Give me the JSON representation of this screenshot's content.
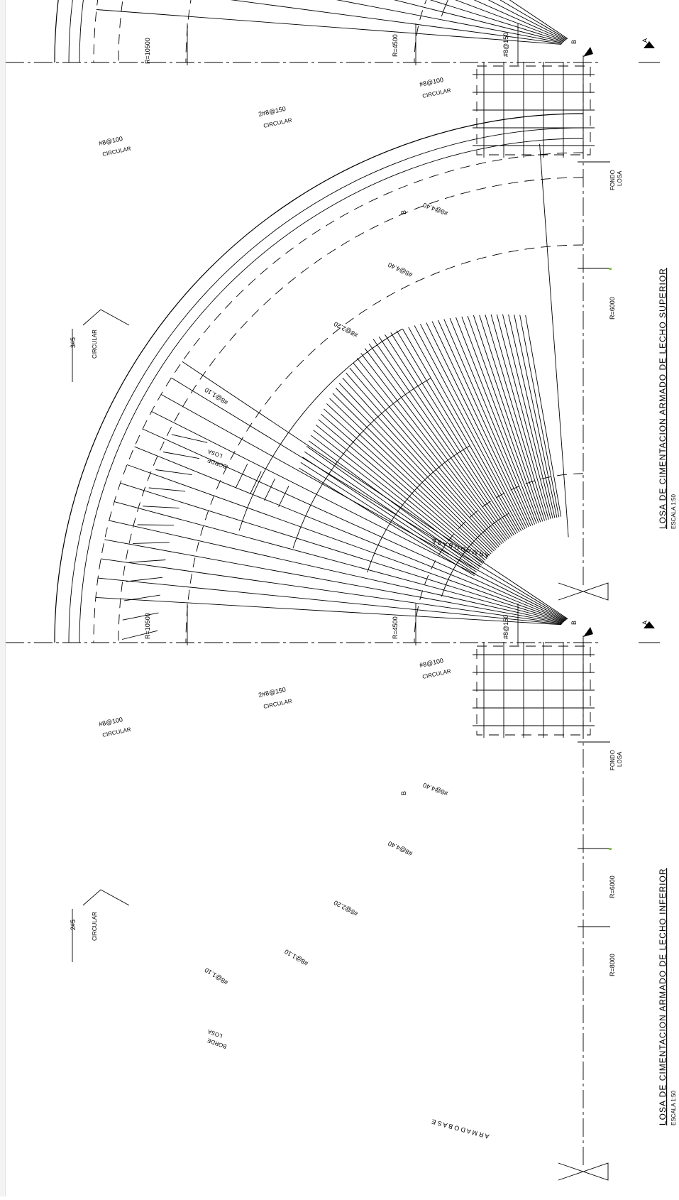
{
  "colors": {
    "ink": "#000000",
    "accent_mark": "#8bc34a"
  },
  "drawings": [
    {
      "id": "superior",
      "title": "LOSA  DE  CIMENTACION  ARMADO  DE  LECHO  SUPERIOR",
      "scale": "ESCALA  1:50",
      "radius_labels": {
        "r10500": "R=10500",
        "r4500": "R=4500",
        "r6000": "R=6000"
      },
      "bar_labels": {
        "top_grid": "#8@150",
        "center_ring": "#8@100",
        "center_ring_note": "CIRCULAR",
        "mid_ring": "2#8@150",
        "mid_ring_note": "CIRCULAR",
        "outer_ring": "#8@100",
        "outer_ring_note": "CIRCULAR",
        "edge_bars": "3#5",
        "edge_bars_note": "CIRCULAR"
      },
      "radial_labels": [
        {
          "mark": "8",
          "text": "#8@4.40"
        },
        {
          "mark": "7",
          "text": "#8@4.40"
        },
        {
          "mark": "6",
          "text": "#8@2.20"
        },
        {
          "mark": "5",
          "text": "#8@1.10"
        }
      ],
      "notes": {
        "fondo": "FONDO",
        "losa": "LOSA",
        "borde": "BORDE",
        "losa2": "LOSA",
        "base": "A R M A D O   B A S E"
      },
      "section_marks": {
        "a": "A",
        "b": "B"
      }
    },
    {
      "id": "inferior",
      "title": "LOSA  DE  CIMENTACION  ARMADO  DE  LECHO  INFERIOR",
      "scale": "ESCALA  1:50",
      "radius_labels": {
        "r10500": "R=10500",
        "r4500": "R=4500",
        "r6000": "R=6000",
        "r8000": "R=8000"
      },
      "bar_labels": {
        "top_grid": "#8@150",
        "center_ring": "#8@100",
        "center_ring_note": "CIRCULAR",
        "mid_ring": "2#8@150",
        "mid_ring_note": "CIRCULAR",
        "outer_ring": "#8@100",
        "outer_ring_note": "CIRCULAR",
        "edge_bars": "2#5",
        "edge_bars_note": "CIRCULAR"
      },
      "radial_labels": [
        {
          "mark": "4",
          "text": "#8@4.40"
        },
        {
          "mark": "3",
          "text": "#8@4.40"
        },
        {
          "mark": "2",
          "text": "#8@2.20"
        },
        {
          "mark": "1",
          "text": "#8@1.10"
        },
        {
          "mark": "5",
          "text": "#8@1.10"
        }
      ],
      "notes": {
        "fondo": "FONDO",
        "losa": "LOSA",
        "borde": "BORDE",
        "losa2": "LOSA",
        "base": "A R M A D O   B A S E"
      },
      "section_marks": {
        "a": "A",
        "b": "B"
      }
    }
  ]
}
